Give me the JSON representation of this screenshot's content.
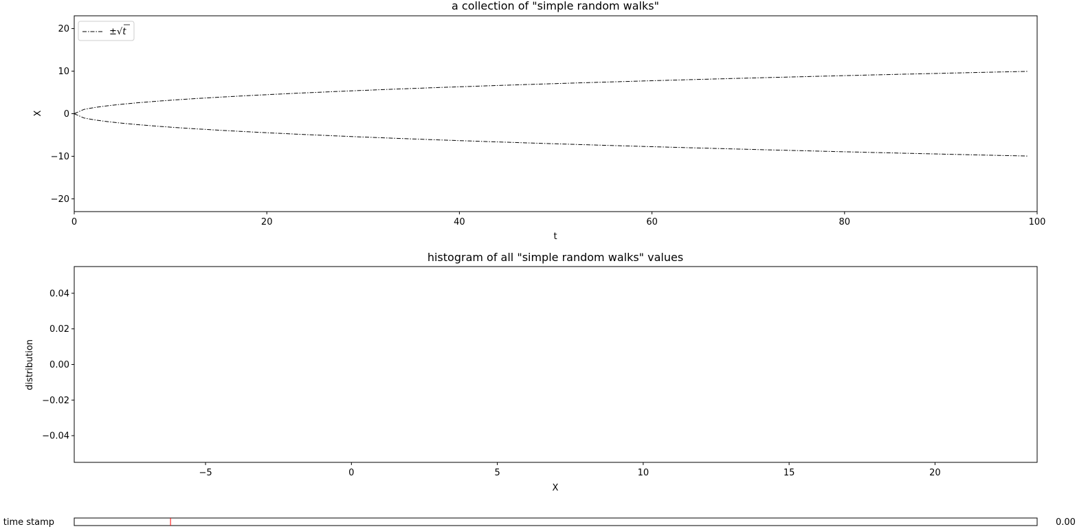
{
  "chart_data": [
    {
      "type": "line",
      "title": "a collection of \"simple random walks\"",
      "xlabel": "t",
      "ylabel": "X",
      "xlim": [
        0,
        100
      ],
      "ylim": [
        -23,
        23
      ],
      "xticks": [
        0,
        20,
        40,
        60,
        80,
        100
      ],
      "yticks": [
        -20,
        -10,
        0,
        10,
        20
      ],
      "xtick_labels": [
        "0",
        "20",
        "40",
        "60",
        "80",
        "100"
      ],
      "ytick_labels": [
        "−20",
        "−10",
        "0",
        "10",
        "20"
      ],
      "series": [
        {
          "name": "+sqrt(t)",
          "function": "sqrt(t)",
          "t_range": [
            0,
            99
          ],
          "style": "dashdot",
          "color": "#000000"
        },
        {
          "name": "-sqrt(t)",
          "function": "-sqrt(t)",
          "t_range": [
            0,
            99
          ],
          "style": "dashdot",
          "color": "#000000"
        }
      ],
      "legend": {
        "label_prefix": "±",
        "label_radical": "√",
        "label_var": "t",
        "position": "upper-left"
      }
    },
    {
      "type": "bar",
      "title": "histogram of all \"simple random walks\" values",
      "xlabel": "X",
      "ylabel": "distribution",
      "xlim": [
        -9.5,
        23.5
      ],
      "ylim": [
        -0.055,
        0.055
      ],
      "xticks": [
        -5,
        0,
        5,
        10,
        15,
        20
      ],
      "yticks": [
        -0.04,
        -0.02,
        0.0,
        0.02,
        0.04
      ],
      "xtick_labels": [
        "−5",
        "0",
        "5",
        "10",
        "15",
        "20"
      ],
      "ytick_labels": [
        "−0.04",
        "−0.02",
        "0.00",
        "0.02",
        "0.04"
      ],
      "values": []
    }
  ],
  "slider": {
    "label": "time stamp",
    "value_text": "0.00",
    "min": 0,
    "max": 100,
    "value": 0,
    "initial_marker": 10,
    "marker_color": "#ff0000"
  }
}
